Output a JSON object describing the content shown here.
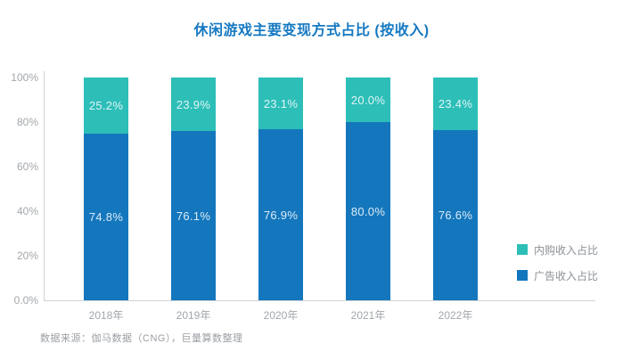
{
  "title": "休闲游戏主要变现方式占比 (按收入)",
  "source_note": "数据来源：伽马数据（CNG），巨量算数整理",
  "colors": {
    "title": "#1679c2",
    "iap": "#2dbeb8",
    "ad": "#1477bd",
    "axis": "#cfd2d6",
    "tick_label": "#a3a7ab"
  },
  "legend": {
    "items": [
      {
        "label": "内购收入占比",
        "color": "#2dbeb8"
      },
      {
        "label": "广告收入占比",
        "color": "#1477bd"
      }
    ]
  },
  "chart_data": {
    "type": "bar",
    "stacked": true,
    "title": "休闲游戏主要变现方式占比 (按收入)",
    "categories": [
      "2018年",
      "2019年",
      "2020年",
      "2021年",
      "2022年"
    ],
    "series": [
      {
        "name": "内购收入占比",
        "color": "#2dbeb8",
        "values": [
          25.2,
          23.9,
          23.1,
          20.0,
          23.4
        ]
      },
      {
        "name": "广告收入占比",
        "color": "#1477bd",
        "values": [
          74.8,
          76.1,
          76.9,
          80.0,
          76.6
        ]
      }
    ],
    "value_suffix": "%",
    "y_ticks": [
      "100%",
      "80%",
      "60%",
      "40%",
      "20%",
      "0.0%"
    ],
    "y_tick_values": [
      100,
      80,
      60,
      40,
      20,
      0
    ],
    "ylim": [
      0,
      100
    ],
    "xlabel": "",
    "ylabel": "",
    "grid": false,
    "legend_position": "right-bottom"
  }
}
